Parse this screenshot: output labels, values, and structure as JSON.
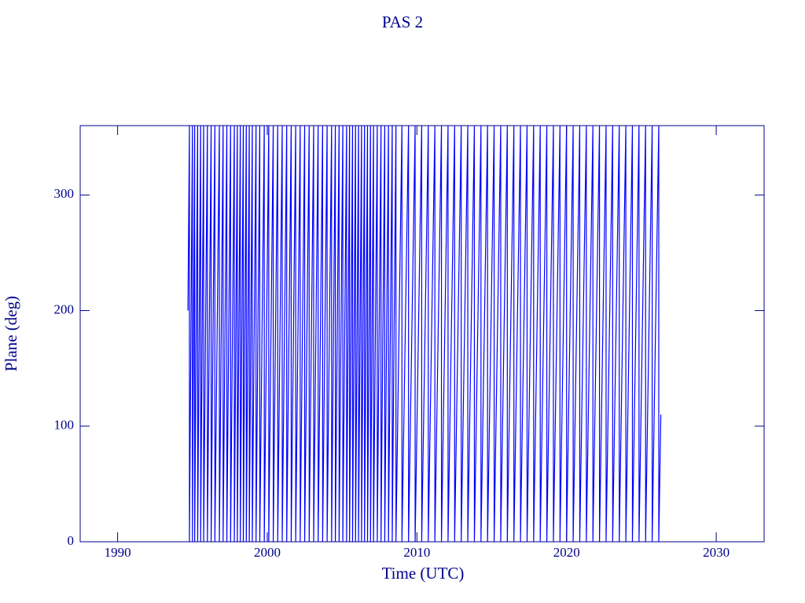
{
  "chart_data": {
    "type": "line",
    "title": "PAS 2",
    "xlabel": "Time (UTC)",
    "ylabel": "Plane (deg)",
    "xlim": [
      1987.5,
      2033.2
    ],
    "xticks": [
      1990,
      2000,
      2010,
      2020,
      2030
    ],
    "ylim": [
      0,
      360
    ],
    "yticks": [
      0,
      100,
      200,
      300
    ],
    "x": [
      1994.7,
      1994.8,
      1994.8,
      1995.0,
      1995.0,
      1995.15,
      1995.15,
      1995.35,
      1995.35,
      1995.55,
      1995.55,
      1995.75,
      1995.75,
      1996.0,
      1996.0,
      1996.25,
      1996.25,
      1996.5,
      1996.5,
      1996.8,
      1996.8,
      1997.05,
      1997.05,
      1997.3,
      1997.3,
      1997.55,
      1997.55,
      1997.8,
      1997.8,
      1998.0,
      1998.0,
      1998.2,
      1998.2,
      1998.4,
      1998.4,
      1998.6,
      1998.6,
      1998.8,
      1998.8,
      1999.0,
      1999.0,
      1999.25,
      1999.25,
      1999.5,
      1999.5,
      1999.8,
      1999.8,
      2000.1,
      2000.1,
      2000.4,
      2000.4,
      2000.7,
      2000.7,
      2001.0,
      2001.0,
      2001.3,
      2001.3,
      2001.6,
      2001.6,
      2001.9,
      2001.9,
      2002.2,
      2002.2,
      2002.5,
      2002.5,
      2002.8,
      2002.8,
      2003.1,
      2003.1,
      2003.4,
      2003.4,
      2003.7,
      2003.7,
      2004.0,
      2004.0,
      2004.3,
      2004.3,
      2004.55,
      2004.55,
      2004.8,
      2004.8,
      2005.05,
      2005.05,
      2005.3,
      2005.3,
      2005.5,
      2005.5,
      2005.7,
      2005.7,
      2005.9,
      2005.9,
      2006.1,
      2006.1,
      2006.3,
      2006.3,
      2006.5,
      2006.5,
      2006.7,
      2006.7,
      2006.9,
      2006.9,
      2007.1,
      2007.1,
      2007.35,
      2007.35,
      2007.6,
      2007.6,
      2007.85,
      2007.85,
      2008.1,
      2008.1,
      2008.35,
      2008.35,
      2008.6,
      2008.6,
      2009.0,
      2009.0,
      2009.44,
      2009.44,
      2009.88,
      2009.88,
      2010.32,
      2010.32,
      2010.76,
      2010.76,
      2011.2,
      2011.2,
      2011.64,
      2011.64,
      2012.08,
      2012.08,
      2012.52,
      2012.52,
      2012.96,
      2012.96,
      2013.4,
      2013.4,
      2013.84,
      2013.84,
      2014.28,
      2014.28,
      2014.72,
      2014.72,
      2015.16,
      2015.16,
      2015.6,
      2015.6,
      2016.04,
      2016.04,
      2016.48,
      2016.48,
      2016.92,
      2016.92,
      2017.36,
      2017.36,
      2017.8,
      2017.8,
      2018.24,
      2018.24,
      2018.68,
      2018.68,
      2019.12,
      2019.12,
      2019.56,
      2019.56,
      2020.0,
      2020.0,
      2020.44,
      2020.44,
      2020.88,
      2020.88,
      2021.32,
      2021.32,
      2021.76,
      2021.76,
      2022.2,
      2022.2,
      2022.64,
      2022.64,
      2023.08,
      2023.08,
      2023.52,
      2023.52,
      2023.96,
      2023.96,
      2024.4,
      2024.4,
      2024.84,
      2024.84,
      2025.28,
      2025.28,
      2025.72,
      2025.72,
      2026.16,
      2026.16,
      2026.3
    ],
    "series": [
      {
        "color": "#0000ff",
        "values": [
          200,
          360,
          0,
          360,
          0,
          360,
          0,
          360,
          0,
          360,
          0,
          360,
          0,
          360,
          0,
          360,
          0,
          360,
          0,
          360,
          0,
          360,
          0,
          360,
          0,
          360,
          0,
          360,
          0,
          360,
          0,
          360,
          0,
          360,
          0,
          360,
          0,
          360,
          0,
          360,
          0,
          360,
          0,
          360,
          0,
          360,
          0,
          360,
          0,
          360,
          0,
          360,
          0,
          360,
          0,
          360,
          0,
          360,
          0,
          360,
          0,
          360,
          0,
          360,
          0,
          360,
          0,
          360,
          0,
          360,
          0,
          360,
          0,
          360,
          0,
          360,
          0,
          360,
          0,
          360,
          0,
          360,
          0,
          360,
          0,
          360,
          0,
          360,
          0,
          360,
          0,
          360,
          0,
          360,
          0,
          360,
          0,
          360,
          0,
          360,
          0,
          360,
          0,
          360,
          0,
          360,
          0,
          360,
          0,
          360,
          0,
          360,
          0,
          360,
          0,
          360,
          0,
          360,
          0,
          360,
          0,
          360,
          0,
          360,
          0,
          360,
          0,
          360,
          0,
          360,
          0,
          360,
          0,
          360,
          0,
          360,
          0,
          360,
          0,
          360,
          0,
          360,
          0,
          360,
          0,
          360,
          0,
          360,
          0,
          360,
          0,
          360,
          0,
          360,
          0,
          360,
          0,
          360,
          0,
          360,
          0,
          360,
          0,
          360,
          0,
          360,
          0,
          360,
          0,
          360,
          0,
          360,
          0,
          360,
          0,
          360,
          0,
          360,
          0,
          360,
          0,
          360,
          0,
          360,
          0,
          360,
          0,
          360,
          0,
          360,
          0,
          360,
          0,
          360,
          0,
          110
        ]
      }
    ],
    "axis_color": "#00008b"
  }
}
